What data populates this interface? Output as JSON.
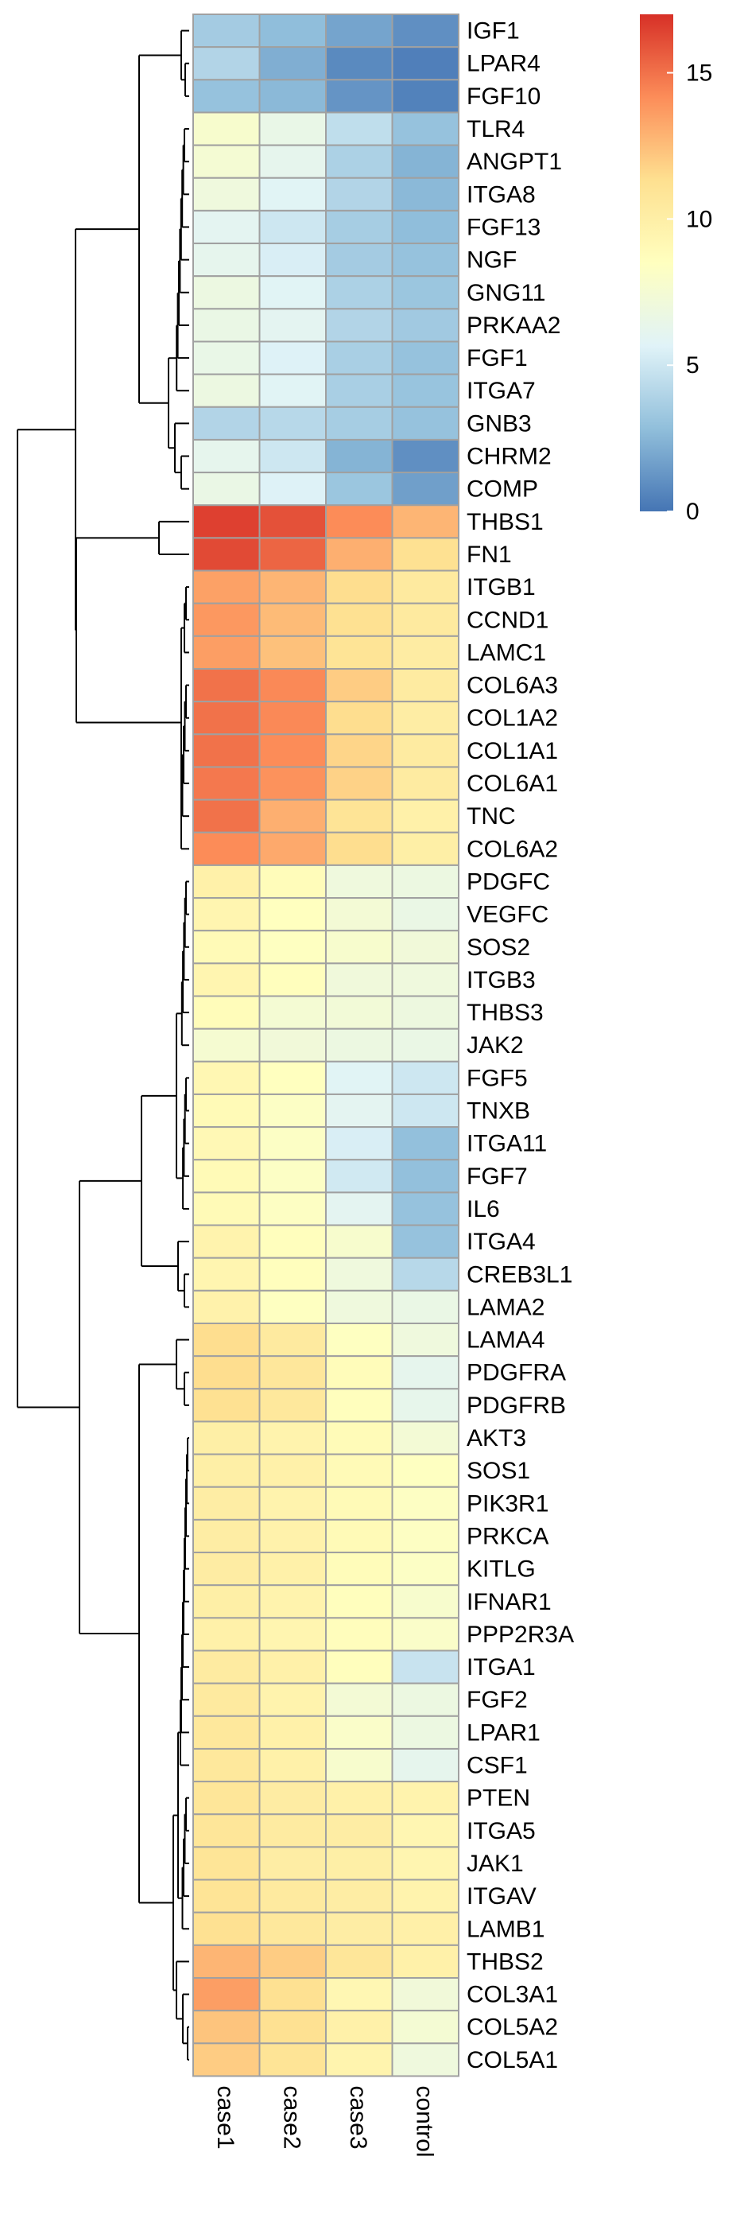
{
  "chart_data": {
    "type": "heatmap",
    "title": "",
    "columns": [
      "case1",
      "case2",
      "case3",
      "control"
    ],
    "rows": [
      "IGF1",
      "LPAR4",
      "FGF10",
      "TLR4",
      "ANGPT1",
      "ITGA8",
      "FGF13",
      "NGF",
      "GNG11",
      "PRKAA2",
      "FGF1",
      "ITGA7",
      "GNB3",
      "CHRM2",
      "COMP",
      "THBS1",
      "FN1",
      "ITGB1",
      "CCND1",
      "LAMC1",
      "COL6A3",
      "COL1A2",
      "COL1A1",
      "COL6A1",
      "TNC",
      "COL6A2",
      "PDGFC",
      "VEGFC",
      "SOS2",
      "ITGB3",
      "THBS3",
      "JAK2",
      "FGF5",
      "TNXB",
      "ITGA11",
      "FGF7",
      "IL6",
      "ITGA4",
      "CREB3L1",
      "LAMA2",
      "LAMA4",
      "PDGFRA",
      "PDGFRB",
      "AKT3",
      "SOS1",
      "PIK3R1",
      "PRKCA",
      "KITLG",
      "IFNAR1",
      "PPP2R3A",
      "ITGA1",
      "FGF2",
      "LPAR1",
      "CSF1",
      "PTEN",
      "ITGA5",
      "JAK1",
      "ITGAV",
      "LAMB1",
      "THBS2",
      "COL3A1",
      "COL5A2",
      "COL5A1"
    ],
    "values": [
      [
        3.5,
        2.8,
        1.8,
        1.0
      ],
      [
        4.0,
        2.2,
        0.8,
        0.4
      ],
      [
        3.0,
        2.6,
        1.2,
        0.5
      ],
      [
        7.8,
        6.5,
        4.5,
        3.0
      ],
      [
        7.5,
        6.2,
        3.8,
        2.4
      ],
      [
        7.0,
        5.8,
        4.0,
        2.6
      ],
      [
        6.0,
        5.0,
        3.6,
        2.8
      ],
      [
        6.2,
        5.4,
        3.5,
        3.0
      ],
      [
        6.8,
        5.8,
        3.8,
        3.2
      ],
      [
        6.6,
        6.0,
        4.0,
        3.4
      ],
      [
        6.5,
        5.6,
        3.7,
        3.0
      ],
      [
        6.8,
        5.8,
        3.7,
        3.1
      ],
      [
        4.0,
        4.2,
        3.6,
        3.0
      ],
      [
        6.2,
        5.0,
        2.4,
        1.0
      ],
      [
        6.6,
        5.6,
        3.2,
        1.6
      ],
      [
        16.5,
        16.0,
        14.2,
        12.8
      ],
      [
        16.2,
        15.4,
        13.0,
        11.2
      ],
      [
        13.5,
        12.8,
        11.4,
        10.4
      ],
      [
        13.8,
        12.6,
        11.2,
        10.4
      ],
      [
        13.6,
        12.4,
        11.0,
        10.2
      ],
      [
        15.0,
        14.3,
        12.0,
        10.3
      ],
      [
        15.0,
        14.3,
        11.4,
        10.1
      ],
      [
        15.0,
        14.2,
        11.7,
        10.3
      ],
      [
        14.8,
        14.0,
        11.8,
        10.3
      ],
      [
        15.0,
        13.0,
        11.0,
        9.8
      ],
      [
        14.2,
        13.2,
        11.4,
        10.0
      ],
      [
        9.8,
        8.8,
        7.0,
        6.8
      ],
      [
        9.4,
        8.5,
        7.4,
        6.6
      ],
      [
        9.0,
        8.4,
        7.8,
        7.2
      ],
      [
        9.4,
        8.6,
        7.1,
        7.0
      ],
      [
        8.8,
        7.5,
        7.3,
        6.9
      ],
      [
        7.6,
        7.2,
        6.8,
        6.6
      ],
      [
        9.2,
        8.5,
        5.8,
        5.0
      ],
      [
        9.0,
        8.2,
        6.0,
        5.0
      ],
      [
        9.1,
        8.2,
        5.4,
        2.9
      ],
      [
        9.0,
        8.2,
        5.1,
        2.9
      ],
      [
        9.0,
        8.3,
        6.0,
        3.0
      ],
      [
        9.6,
        8.6,
        7.8,
        3.0
      ],
      [
        9.4,
        8.6,
        7.0,
        4.2
      ],
      [
        9.7,
        8.4,
        7.0,
        6.6
      ],
      [
        11.4,
        10.4,
        8.4,
        7.0
      ],
      [
        11.4,
        10.7,
        8.8,
        6.2
      ],
      [
        11.2,
        10.6,
        8.6,
        6.3
      ],
      [
        10.0,
        9.6,
        8.9,
        7.4
      ],
      [
        10.0,
        9.8,
        9.0,
        8.4
      ],
      [
        10.1,
        9.6,
        9.0,
        8.3
      ],
      [
        10.1,
        9.7,
        9.0,
        8.3
      ],
      [
        10.2,
        9.8,
        8.8,
        8.2
      ],
      [
        10.0,
        9.6,
        8.6,
        7.8
      ],
      [
        9.8,
        9.4,
        8.7,
        8.0
      ],
      [
        10.3,
        9.8,
        8.6,
        4.8
      ],
      [
        10.4,
        9.6,
        7.4,
        6.8
      ],
      [
        10.6,
        9.8,
        8.0,
        6.8
      ],
      [
        10.6,
        9.8,
        7.8,
        6.2
      ],
      [
        10.8,
        10.2,
        9.8,
        9.6
      ],
      [
        10.8,
        10.3,
        10.1,
        9.3
      ],
      [
        10.9,
        10.1,
        10.0,
        9.4
      ],
      [
        11.0,
        10.4,
        10.1,
        9.6
      ],
      [
        11.2,
        10.6,
        10.1,
        9.9
      ],
      [
        12.8,
        12.0,
        10.8,
        9.8
      ],
      [
        13.6,
        11.2,
        9.2,
        7.2
      ],
      [
        12.3,
        11.2,
        9.8,
        7.5
      ],
      [
        12.0,
        11.0,
        9.5,
        7.0
      ]
    ],
    "color_scale": {
      "min": 0.0,
      "max": 17.0,
      "stops": [
        "#4575B4",
        "#91BFDB",
        "#E0F3F8",
        "#FFFFBF",
        "#FEE090",
        "#FC8D59",
        "#D73027"
      ],
      "ticks": [
        0,
        5,
        10,
        15
      ],
      "legend_position": "top-right"
    },
    "row_dendrogram": {
      "leaf_order": "as rows",
      "merges_note": "hierarchical clustering tree drawn on left"
    },
    "cell_border_color": "#A0A0A0",
    "grid": false
  }
}
